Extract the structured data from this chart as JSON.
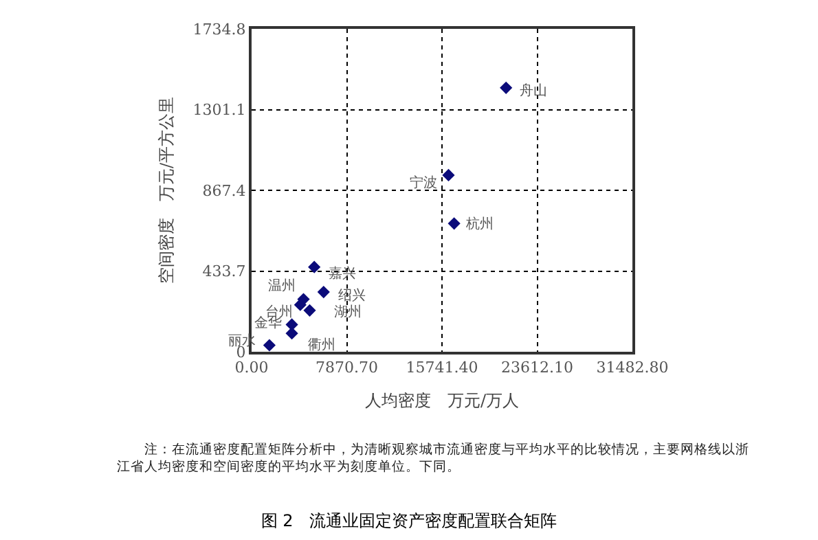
{
  "chart_data": {
    "type": "scatter",
    "title": "图 2　流通业固定资产密度配置联合矩阵",
    "xlabel": "人均密度　万元/万人",
    "ylabel": "空间密度　万元/平方公里",
    "x": [
      21037,
      16280,
      16744,
      5182,
      5955,
      4292,
      4025,
      4802,
      3329,
      3329,
      1473
    ],
    "series": [
      {
        "color": "#0b0b7a",
        "values": [
          1418,
          949,
          689,
          455,
          321,
          282,
          252,
          222,
          146,
          99,
          35
        ]
      }
    ],
    "xlim": [
      0,
      31482.8
    ],
    "ylim": [
      0,
      1734.8
    ],
    "xticks": [
      {
        "value": 0,
        "label": "0.00"
      },
      {
        "value": 7870.7,
        "label": "7870.70"
      },
      {
        "value": 15741.4,
        "label": "15741.40"
      },
      {
        "value": 23612.1,
        "label": "23612.10"
      },
      {
        "value": 31482.8,
        "label": "31482.80"
      }
    ],
    "yticks": [
      0,
      433.7,
      867.4,
      1301.1,
      1734.8
    ],
    "grid": true,
    "marker": "diamond",
    "line_style": "none",
    "annotations": [
      {
        "text": "舟山",
        "x": 21037,
        "y": 1418
      },
      {
        "text": "宁波",
        "x": 16280,
        "y": 949
      },
      {
        "text": "杭州",
        "x": 16744,
        "y": 689
      },
      {
        "text": "嘉兴",
        "x": 5182,
        "y": 455
      },
      {
        "text": "绍兴",
        "x": 5955,
        "y": 321
      },
      {
        "text": "温州",
        "x": 4292,
        "y": 282
      },
      {
        "text": "台州",
        "x": 4025,
        "y": 252
      },
      {
        "text": "湖州",
        "x": 4802,
        "y": 222
      },
      {
        "text": "金华",
        "x": 3329,
        "y": 146
      },
      {
        "text": "衢州",
        "x": 3329,
        "y": 99
      },
      {
        "text": "丽水",
        "x": 1473,
        "y": 35
      },
      "注：在流通密度配置矩阵分析中，为清晰观察城市流通密度与平均水平的比较情况，主要网格线以浙江省人均密度和空间密度的平均水平为刻度单位。下同。"
    ]
  }
}
